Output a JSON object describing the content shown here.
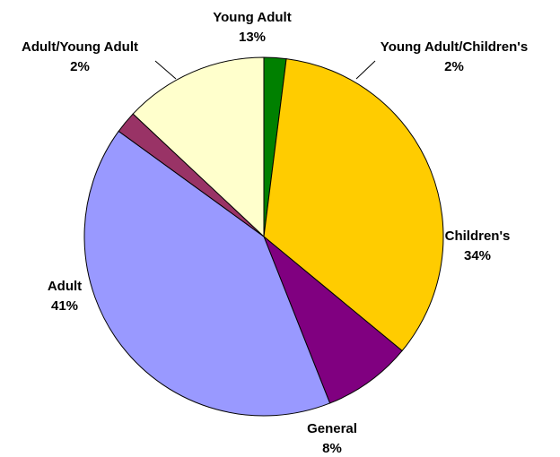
{
  "chart_data": {
    "type": "pie",
    "title": "",
    "slices": [
      {
        "name": "Young Adult/Children's",
        "value": 2,
        "label": "2%",
        "color": "#008000"
      },
      {
        "name": "Children's",
        "value": 34,
        "label": "34%",
        "color": "#FFCC00"
      },
      {
        "name": "General",
        "value": 8,
        "label": "8%",
        "color": "#800080"
      },
      {
        "name": "Adult",
        "value": 41,
        "label": "41%",
        "color": "#9999FF"
      },
      {
        "name": "Adult/Young Adult",
        "value": 2,
        "label": "2%",
        "color": "#993366"
      },
      {
        "name": "Young Adult",
        "value": 13,
        "label": "13%",
        "color": "#FFFFCC"
      }
    ],
    "legend": "none",
    "label_style": "category name and percentage"
  }
}
